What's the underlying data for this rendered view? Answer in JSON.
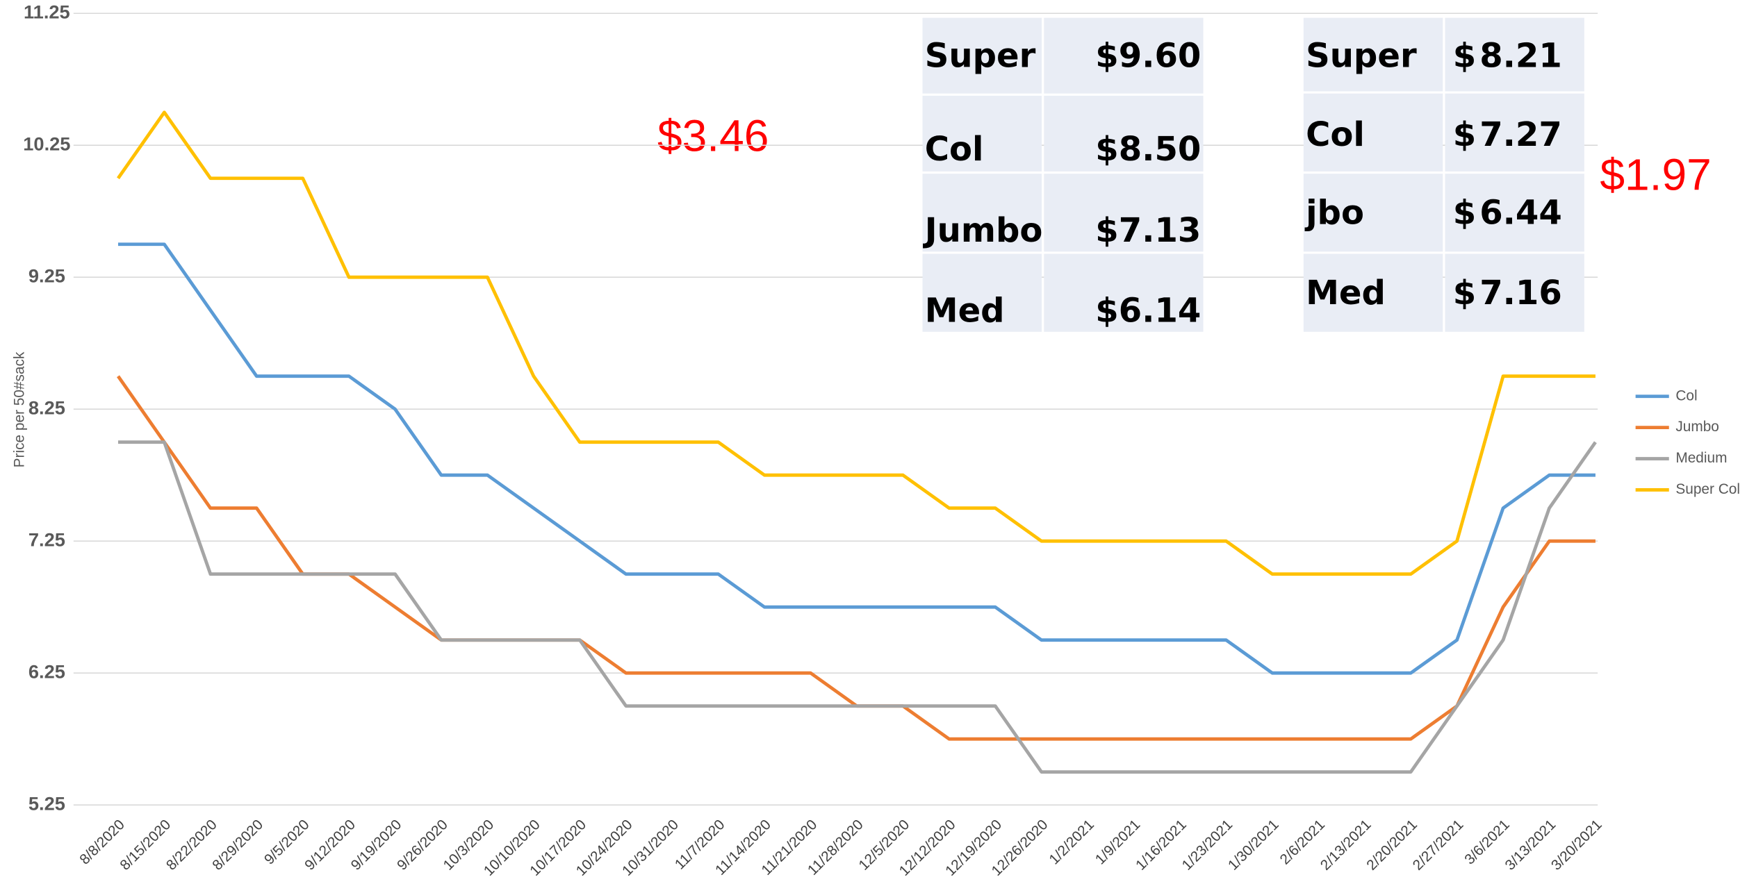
{
  "chart_data": {
    "type": "line",
    "y_label": "Price per 50#sack",
    "categories": [
      "8/8/2020",
      "8/15/2020",
      "8/22/2020",
      "8/29/2020",
      "9/5/2020",
      "9/12/2020",
      "9/19/2020",
      "9/26/2020",
      "10/3/2020",
      "10/10/2020",
      "10/17/2020",
      "10/24/2020",
      "10/31/2020",
      "11/7/2020",
      "11/14/2020",
      "11/21/2020",
      "11/28/2020",
      "12/5/2020",
      "12/12/2020",
      "12/19/2020",
      "12/26/2020",
      "1/2/2021",
      "1/9/2021",
      "1/16/2021",
      "1/23/2021",
      "1/30/2021",
      "2/6/2021",
      "2/13/2021",
      "2/20/2021",
      "2/27/2021",
      "3/6/2021",
      "3/13/2021",
      "3/20/2021"
    ],
    "series": [
      {
        "name": "Col",
        "color": "#5b9bd5",
        "values": [
          9.5,
          9.5,
          9.0,
          8.5,
          8.5,
          8.5,
          8.25,
          7.75,
          7.75,
          7.5,
          7.25,
          7.0,
          7.0,
          7.0,
          6.75,
          6.75,
          6.75,
          6.75,
          6.75,
          6.75,
          6.5,
          6.5,
          6.5,
          6.5,
          6.5,
          6.25,
          6.25,
          6.25,
          6.25,
          6.5,
          7.5,
          7.75,
          7.75
        ]
      },
      {
        "name": "Jumbo",
        "color": "#ed7d31",
        "values": [
          8.5,
          8.0,
          7.5,
          7.5,
          7.0,
          7.0,
          6.75,
          6.5,
          6.5,
          6.5,
          6.5,
          6.25,
          6.25,
          6.25,
          6.25,
          6.25,
          6.0,
          6.0,
          5.75,
          5.75,
          5.75,
          5.75,
          5.75,
          5.75,
          5.75,
          5.75,
          5.75,
          5.75,
          5.75,
          6.0,
          6.75,
          7.25,
          7.25
        ]
      },
      {
        "name": "Medium",
        "color": "#a5a5a5",
        "values": [
          8.0,
          8.0,
          7.0,
          7.0,
          7.0,
          7.0,
          7.0,
          6.5,
          6.5,
          6.5,
          6.5,
          6.0,
          6.0,
          6.0,
          6.0,
          6.0,
          6.0,
          6.0,
          6.0,
          6.0,
          5.5,
          5.5,
          5.5,
          5.5,
          5.5,
          5.5,
          5.5,
          5.5,
          5.5,
          6.0,
          6.5,
          7.5,
          8.0
        ]
      },
      {
        "name": "Super Col",
        "color": "#ffc000",
        "values": [
          10.0,
          10.5,
          10.0,
          10.0,
          10.0,
          9.25,
          9.25,
          9.25,
          9.25,
          8.5,
          8.0,
          8.0,
          8.0,
          8.0,
          7.75,
          7.75,
          7.75,
          7.75,
          7.5,
          7.5,
          7.25,
          7.25,
          7.25,
          7.25,
          7.25,
          7.0,
          7.0,
          7.0,
          7.0,
          7.25,
          8.5,
          8.5,
          8.5
        ]
      }
    ],
    "ylim": [
      5.25,
      11.25
    ],
    "yticks": [
      5.25,
      6.25,
      7.25,
      8.25,
      9.25,
      10.25,
      11.25
    ],
    "grid": true,
    "legend": "right",
    "annotations": [
      "$3.46",
      "$1.97"
    ],
    "tables": [
      {
        "rows": [
          [
            "Super",
            "$9.60"
          ],
          [
            "Col",
            "$8.50"
          ],
          [
            "Jumbo",
            "$7.13"
          ],
          [
            "Med",
            "$6.14"
          ]
        ]
      },
      {
        "rows": [
          [
            "Super",
            "$",
            "8.21"
          ],
          [
            "Col",
            "$",
            "7.27"
          ],
          [
            "jbo",
            "$",
            "6.44"
          ],
          [
            "Med",
            "$",
            "7.16"
          ]
        ]
      }
    ]
  }
}
